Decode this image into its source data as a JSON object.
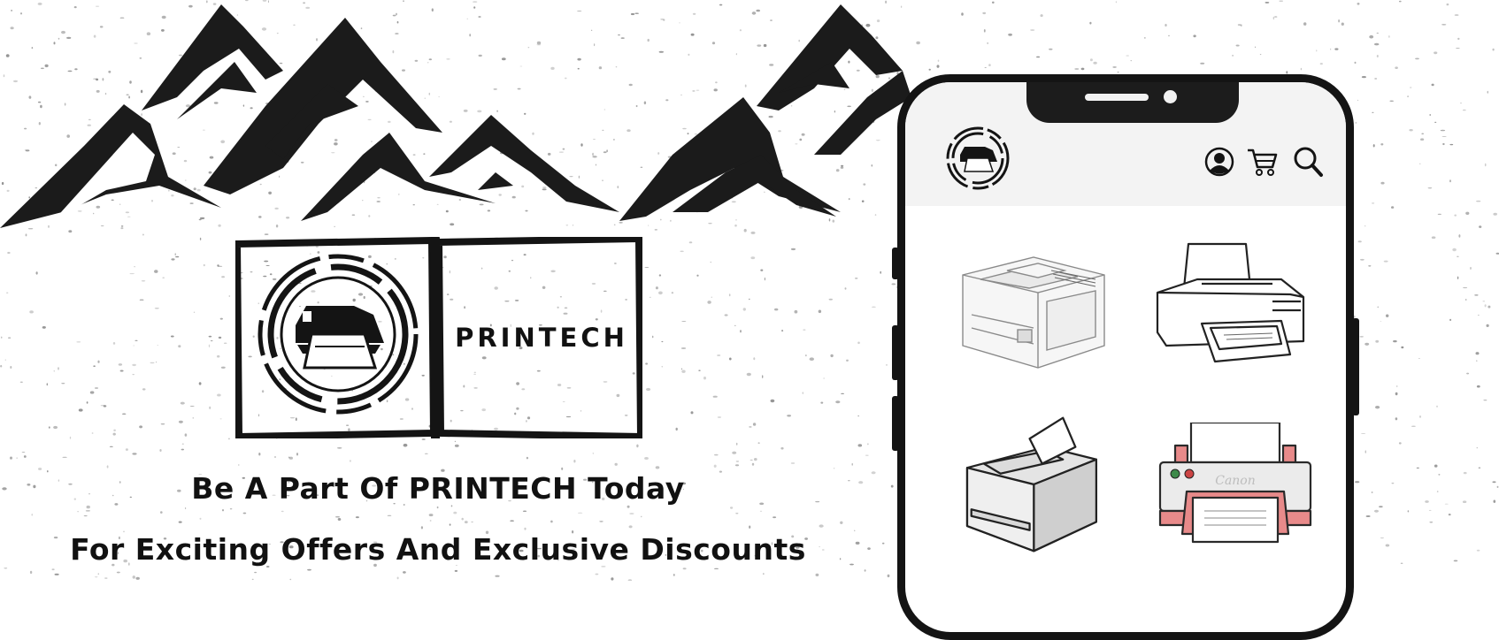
{
  "brand": {
    "name": "PRINTECH",
    "tagline_line1": "Be A Part Of PRINTECH Today",
    "tagline_line2": "For Exciting Offers And Exclusive Discounts"
  },
  "phone": {
    "header_icons": [
      "user-icon",
      "cart-icon",
      "search-icon"
    ],
    "products": [
      {
        "icon": "laser-printer-icon"
      },
      {
        "icon": "inkjet-printer-icon"
      },
      {
        "icon": "office-printer-icon"
      },
      {
        "icon": "pink-printer-icon",
        "logo_text": "Canon"
      }
    ]
  },
  "colors": {
    "ink": "#141414",
    "background": "#ffffff",
    "speckle": "#777777",
    "header_bg": "#f3f3f3",
    "accent_pink": "#e88a8a"
  }
}
